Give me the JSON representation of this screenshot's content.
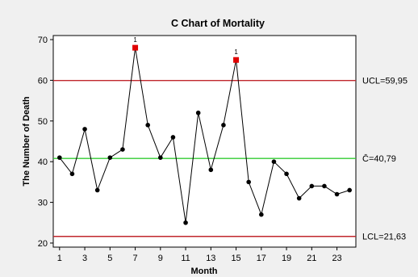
{
  "chart_data": {
    "type": "line",
    "title": "C Chart of Mortality",
    "xlabel": "Month",
    "ylabel": "The Number of Death",
    "xlim": [
      0.5,
      24.5
    ],
    "ylim": [
      19,
      71
    ],
    "x_ticks": [
      1,
      3,
      5,
      7,
      9,
      11,
      13,
      15,
      17,
      19,
      21,
      23
    ],
    "y_ticks": [
      20,
      30,
      40,
      50,
      60,
      70
    ],
    "grid": false,
    "series": [
      {
        "name": "",
        "x": [
          1,
          2,
          3,
          4,
          5,
          6,
          7,
          8,
          9,
          10,
          11,
          12,
          13,
          14,
          15,
          16,
          17,
          18,
          19,
          20,
          21,
          22,
          23,
          24
        ],
        "values": [
          41,
          37,
          48,
          33,
          41,
          43,
          68,
          49,
          41,
          46,
          25,
          52,
          38,
          49,
          65,
          35,
          27,
          40,
          37,
          31,
          34,
          34,
          32,
          33
        ]
      }
    ],
    "out_of_control": [
      {
        "x": 7,
        "y": 68,
        "label": "1"
      },
      {
        "x": 15,
        "y": 65,
        "label": "1"
      }
    ],
    "control_lines": [
      {
        "name": "UCL",
        "value": 59.95,
        "label": "UCL=59,95",
        "color": "#c0272d"
      },
      {
        "name": "CL",
        "value": 40.79,
        "label": "C̄=40,79",
        "color": "#33cc33"
      },
      {
        "name": "LCL",
        "value": 21.63,
        "label": "LCL=21,63",
        "color": "#c0272d"
      }
    ],
    "colors": {
      "point": "#000000",
      "line": "#000000",
      "out_of_control_point": "#e00000",
      "background": "#f0f0f0",
      "plot_background": "#ffffff"
    }
  }
}
